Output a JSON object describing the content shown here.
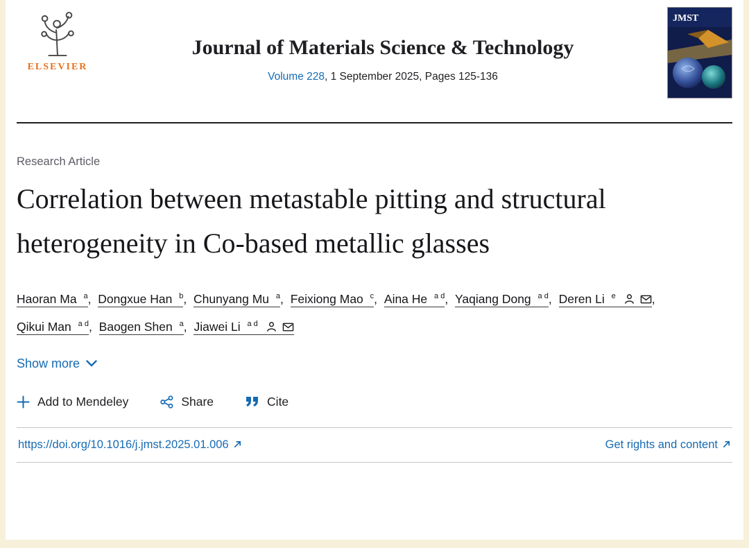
{
  "colors": {
    "link_blue": "#166bb3",
    "elsevier_orange": "#e9711c",
    "page_background": "#f7f0da",
    "divider_dark": "#1f1f1f"
  },
  "header": {
    "publisher_name": "ELSEVIER",
    "journal_title": "Journal of Materials Science & Technology",
    "volume_link_label": "Volume 228",
    "issue_details": ", 1 September 2025, Pages 125-136",
    "cover_title": "JMST"
  },
  "article": {
    "type_label": "Research Article",
    "title": "Correlation between metastable pitting and structural heterogeneity in Co-based metallic glasses",
    "authors": [
      {
        "name": "Haoran Ma",
        "affiliations": "a",
        "corresponding": false
      },
      {
        "name": "Dongxue Han",
        "affiliations": "b",
        "corresponding": false
      },
      {
        "name": "Chunyang Mu",
        "affiliations": "a",
        "corresponding": false
      },
      {
        "name": "Feixiong Mao",
        "affiliations": "c",
        "corresponding": false
      },
      {
        "name": "Aina He",
        "affiliations": "a d",
        "corresponding": false
      },
      {
        "name": "Yaqiang Dong",
        "affiliations": "a d",
        "corresponding": false
      },
      {
        "name": "Deren Li",
        "affiliations": "e",
        "corresponding": true
      },
      {
        "name": "Qikui Man",
        "affiliations": "a d",
        "corresponding": false
      },
      {
        "name": "Baogen Shen",
        "affiliations": "a",
        "corresponding": false
      },
      {
        "name": "Jiawei Li",
        "affiliations": "a d",
        "corresponding": true
      }
    ],
    "show_more_label": "Show more",
    "actions": {
      "mendeley_label": "Add to Mendeley",
      "share_label": "Share",
      "cite_label": "Cite"
    },
    "doi_link_label": "https://doi.org/10.1016/j.jmst.2025.01.006",
    "rights_link_label": "Get rights and content"
  }
}
